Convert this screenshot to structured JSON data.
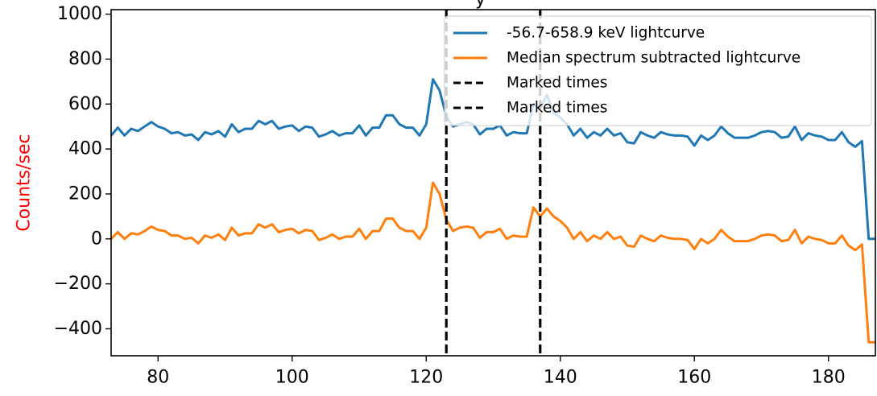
{
  "chart_data": {
    "type": "line",
    "title": "",
    "title_fragment": "y",
    "xlabel": "",
    "ylabel": "Counts/sec",
    "xlim": [
      73,
      187
    ],
    "ylim": [
      -520,
      1020
    ],
    "xticks": [
      80,
      100,
      120,
      140,
      160,
      180
    ],
    "yticks": [
      -400,
      -200,
      0,
      200,
      400,
      600,
      800,
      1000
    ],
    "grid": false,
    "legend_location": "upper right",
    "colors": {
      "ylabel": "#ff0000",
      "series_blue": "#1f77b4",
      "series_orange": "#ff7f0e",
      "marker_lines": "#000000"
    },
    "x": [
      73,
      74,
      75,
      76,
      77,
      78,
      79,
      80,
      81,
      82,
      83,
      84,
      85,
      86,
      87,
      88,
      89,
      90,
      91,
      92,
      93,
      94,
      95,
      96,
      97,
      98,
      99,
      100,
      101,
      102,
      103,
      104,
      105,
      106,
      107,
      108,
      109,
      110,
      111,
      112,
      113,
      114,
      115,
      116,
      117,
      118,
      119,
      120,
      121,
      122,
      123,
      124,
      125,
      126,
      127,
      128,
      129,
      130,
      131,
      132,
      133,
      134,
      135,
      136,
      137,
      138,
      139,
      140,
      141,
      142,
      143,
      144,
      145,
      146,
      147,
      148,
      149,
      150,
      151,
      152,
      153,
      154,
      155,
      156,
      157,
      158,
      159,
      160,
      161,
      162,
      163,
      164,
      165,
      166,
      167,
      168,
      169,
      170,
      171,
      172,
      173,
      174,
      175,
      176,
      177,
      178,
      179,
      180,
      181,
      182,
      183,
      184,
      185,
      186,
      187
    ],
    "series": [
      {
        "name": "-56.7-658.9 keV lightcurve",
        "values": [
          460,
          495,
          460,
          490,
          480,
          500,
          520,
          500,
          490,
          470,
          475,
          460,
          465,
          440,
          475,
          465,
          480,
          455,
          510,
          475,
          490,
          490,
          525,
          510,
          525,
          490,
          500,
          505,
          480,
          500,
          495,
          455,
          465,
          480,
          460,
          470,
          470,
          505,
          460,
          495,
          495,
          550,
          550,
          510,
          495,
          495,
          460,
          510,
          710,
          660,
          545,
          500,
          510,
          520,
          510,
          465,
          490,
          490,
          505,
          460,
          475,
          470,
          470,
          600,
          580,
          640,
          560,
          540,
          510,
          460,
          490,
          450,
          475,
          460,
          490,
          460,
          470,
          430,
          425,
          475,
          460,
          450,
          475,
          465,
          460,
          460,
          455,
          415,
          460,
          440,
          460,
          500,
          470,
          450,
          450,
          450,
          460,
          475,
          480,
          475,
          450,
          455,
          500,
          440,
          470,
          460,
          455,
          440,
          440,
          475,
          430,
          410,
          435,
          0,
          0
        ]
      },
      {
        "name": "Median spectrum subtracted lightcurve",
        "values": [
          0,
          30,
          0,
          25,
          20,
          35,
          55,
          40,
          35,
          15,
          15,
          0,
          5,
          -20,
          15,
          5,
          20,
          -5,
          50,
          15,
          25,
          25,
          65,
          50,
          65,
          30,
          40,
          45,
          25,
          40,
          35,
          -5,
          5,
          20,
          0,
          10,
          10,
          45,
          0,
          35,
          35,
          90,
          90,
          50,
          35,
          35,
          0,
          50,
          250,
          200,
          85,
          35,
          50,
          55,
          50,
          5,
          30,
          30,
          45,
          0,
          15,
          10,
          10,
          140,
          100,
          135,
          100,
          80,
          50,
          0,
          30,
          -10,
          15,
          0,
          30,
          0,
          10,
          -30,
          -35,
          15,
          0,
          -10,
          15,
          5,
          0,
          0,
          -5,
          -45,
          0,
          -20,
          0,
          40,
          10,
          -10,
          -10,
          -10,
          0,
          15,
          20,
          15,
          -10,
          -5,
          40,
          -20,
          10,
          0,
          -5,
          -20,
          -20,
          15,
          -30,
          -50,
          -25,
          -460,
          -460
        ]
      }
    ],
    "vlines": [
      {
        "label": "Marked times",
        "x": 123
      },
      {
        "label": "Marked times",
        "x": 137
      }
    ]
  }
}
